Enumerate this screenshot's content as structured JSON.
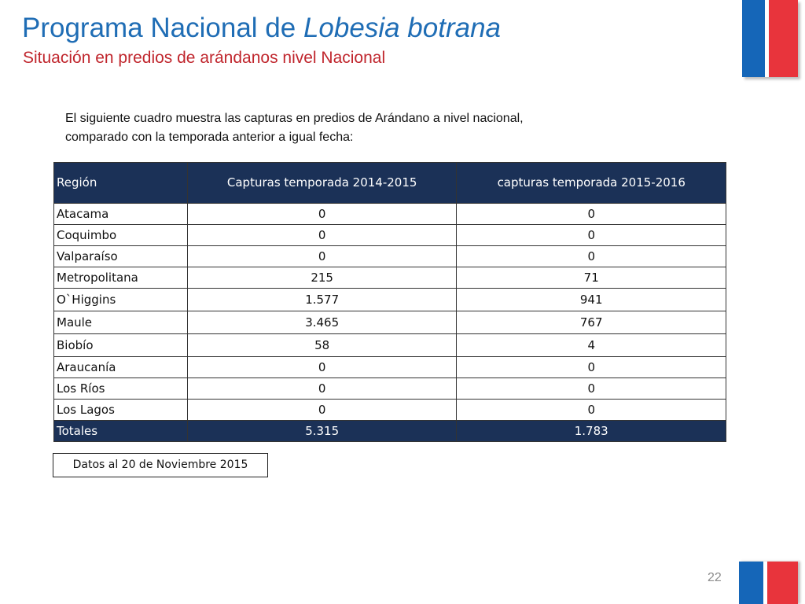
{
  "slide": {
    "title_main": "Programa Nacional de ",
    "title_italic": "Lobesia botrana",
    "subtitle": "Situación en predios de arándanos nivel Nacional",
    "intro_line1": "El siguiente cuadro muestra las capturas  en predios de Arándano a nivel nacional,",
    "intro_line2": "comparado con la temporada anterior a igual fecha:",
    "note": "Datos al 20 de Noviembre 2015",
    "page_number": "22",
    "colors": {
      "title": "#1f6db5",
      "subtitle": "#c0262d",
      "table_header": "#1b3157",
      "flag_blue": "#1566b8",
      "flag_red": "#e8343c"
    }
  },
  "table": {
    "headers": [
      "Región",
      "Capturas temporada 2014-2015",
      "capturas temporada 2015-2016"
    ],
    "rows": [
      [
        "Atacama",
        "0",
        "0"
      ],
      [
        "Coquimbo",
        "0",
        "0"
      ],
      [
        "Valparaíso",
        "0",
        "0"
      ],
      [
        "Metropolitana",
        "215",
        "71"
      ],
      [
        "O`Higgins",
        "1.577",
        "941"
      ],
      [
        "Maule",
        "3.465",
        "767"
      ],
      [
        "Biobío",
        "58",
        "4"
      ],
      [
        "Araucanía",
        "0",
        "0"
      ],
      [
        "Los Ríos",
        "0",
        "0"
      ],
      [
        "Los Lagos",
        "0",
        "0"
      ]
    ],
    "totals": [
      "Totales",
      "5.315",
      "1.783"
    ]
  }
}
